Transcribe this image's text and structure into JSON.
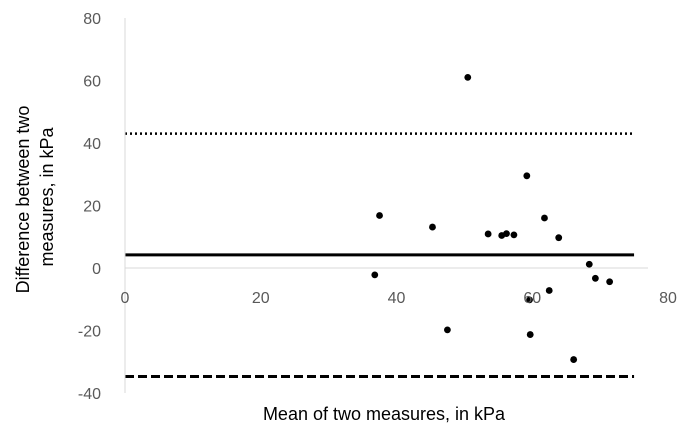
{
  "chart_data": {
    "type": "scatter",
    "xlabel": "Mean of two measures, in kPa",
    "ylabel_lines": [
      "Difference between two",
      "measures, in kPa"
    ],
    "xlim": [
      0,
      80
    ],
    "ylim": [
      -40,
      80
    ],
    "x_ticks": [
      "0",
      "20",
      "40",
      "60",
      "80"
    ],
    "y_ticks": [
      "-40",
      "-20",
      "0",
      "20",
      "40",
      "60",
      "80"
    ],
    "grid": false,
    "legend": "none",
    "points": [
      {
        "x": 36.8,
        "y": -2.2
      },
      {
        "x": 37.5,
        "y": 16.8
      },
      {
        "x": 45.3,
        "y": 13.1
      },
      {
        "x": 47.5,
        "y": -19.8
      },
      {
        "x": 50.5,
        "y": 61.0
      },
      {
        "x": 53.5,
        "y": 10.9
      },
      {
        "x": 55.5,
        "y": 10.4
      },
      {
        "x": 56.2,
        "y": 11.0
      },
      {
        "x": 57.3,
        "y": 10.6
      },
      {
        "x": 59.2,
        "y": 29.5
      },
      {
        "x": 59.6,
        "y": -10.2
      },
      {
        "x": 59.7,
        "y": -21.3
      },
      {
        "x": 61.8,
        "y": 16.0
      },
      {
        "x": 62.5,
        "y": -7.2
      },
      {
        "x": 63.9,
        "y": 9.7
      },
      {
        "x": 66.1,
        "y": -29.3
      },
      {
        "x": 68.4,
        "y": 1.2
      },
      {
        "x": 69.3,
        "y": -3.3
      },
      {
        "x": 71.4,
        "y": -4.4
      }
    ],
    "reference_lines": [
      {
        "style": "solid",
        "y": 4.2
      },
      {
        "style": "dotted",
        "y": 43.0
      },
      {
        "style": "dashed",
        "y": -34.7
      }
    ],
    "reference_x_range": [
      0,
      75
    ]
  },
  "colors": {
    "points": "#000000",
    "axis": "#d9d9d9",
    "tick_text": "#595959"
  }
}
